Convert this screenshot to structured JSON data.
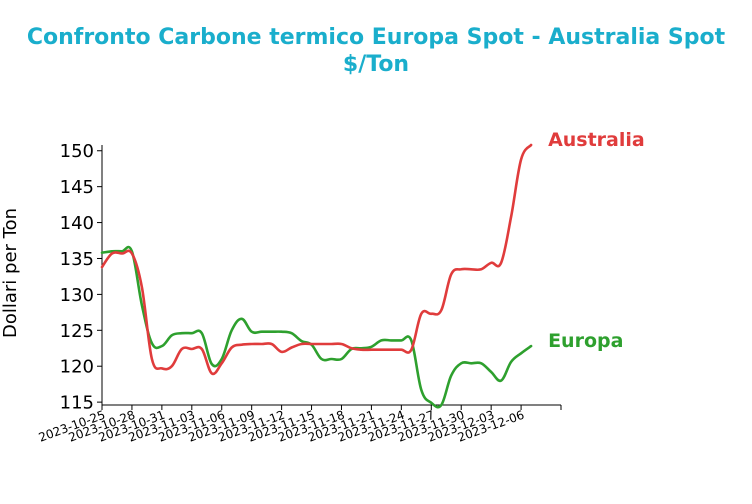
{
  "chart_data": {
    "type": "line",
    "title_line1": "Confronto Carbone termico Europa Spot - Australia Spot",
    "title_line2": "$/Ton",
    "xlabel": "",
    "ylabel": "Dollari per Ton",
    "ylim": [
      114.6,
      150.8
    ],
    "yticks": [
      115,
      120,
      125,
      130,
      135,
      140,
      145,
      150
    ],
    "xlim": [
      "2023-10-25",
      "2023-12-10"
    ],
    "xticks": [
      "2023-10-25",
      "2023-10-28",
      "2023-10-31",
      "2023-11-03",
      "2023-11-06",
      "2023-11-09",
      "2023-11-12",
      "2023-11-15",
      "2023-11-18",
      "2023-11-21",
      "2023-11-24",
      "2023-11-27",
      "2023-11-30",
      "2023-12-03",
      "2023-12-06"
    ],
    "grid": false,
    "legend": "none; series names printed at line ends",
    "series": [
      {
        "name": "Australia",
        "color": "#e03c3c",
        "x": [
          "2023-10-25",
          "2023-10-26",
          "2023-10-27",
          "2023-10-28",
          "2023-10-29",
          "2023-10-30",
          "2023-10-31",
          "2023-11-01",
          "2023-11-02",
          "2023-11-03",
          "2023-11-04",
          "2023-11-05",
          "2023-11-06",
          "2023-11-07",
          "2023-11-08",
          "2023-11-09",
          "2023-11-10",
          "2023-11-11",
          "2023-11-12",
          "2023-11-13",
          "2023-11-14",
          "2023-11-15",
          "2023-11-16",
          "2023-11-17",
          "2023-11-18",
          "2023-11-19",
          "2023-11-20",
          "2023-11-21",
          "2023-11-22",
          "2023-11-23",
          "2023-11-24",
          "2023-11-25",
          "2023-11-26",
          "2023-11-27",
          "2023-11-28",
          "2023-11-29",
          "2023-11-30",
          "2023-12-01",
          "2023-12-02",
          "2023-12-03",
          "2023-12-04",
          "2023-12-05",
          "2023-12-06",
          "2023-12-07"
        ],
        "values": [
          133.8,
          135.7,
          135.7,
          135.7,
          131.0,
          121.0,
          119.7,
          120.0,
          122.4,
          122.4,
          122.4,
          119.0,
          120.4,
          122.6,
          123.0,
          123.1,
          123.1,
          123.1,
          122.0,
          122.6,
          123.1,
          123.1,
          123.1,
          123.1,
          123.1,
          122.5,
          122.3,
          122.3,
          122.3,
          122.3,
          122.3,
          122.3,
          127.3,
          127.3,
          127.8,
          132.8,
          133.5,
          133.5,
          133.5,
          134.4,
          134.4,
          140.8,
          148.8,
          150.8
        ]
      },
      {
        "name": "Europa",
        "color": "#2ea02e",
        "x": [
          "2023-10-25",
          "2023-10-26",
          "2023-10-27",
          "2023-10-28",
          "2023-10-29",
          "2023-10-30",
          "2023-10-31",
          "2023-11-01",
          "2023-11-02",
          "2023-11-03",
          "2023-11-04",
          "2023-11-05",
          "2023-11-06",
          "2023-11-07",
          "2023-11-08",
          "2023-11-09",
          "2023-11-10",
          "2023-11-11",
          "2023-11-12",
          "2023-11-13",
          "2023-11-14",
          "2023-11-15",
          "2023-11-16",
          "2023-11-17",
          "2023-11-18",
          "2023-11-19",
          "2023-11-20",
          "2023-11-21",
          "2023-11-22",
          "2023-11-23",
          "2023-11-24",
          "2023-11-25",
          "2023-11-26",
          "2023-11-27",
          "2023-11-28",
          "2023-11-29",
          "2023-11-30",
          "2023-12-01",
          "2023-12-02",
          "2023-12-03",
          "2023-12-04",
          "2023-12-05",
          "2023-12-06",
          "2023-12-07"
        ],
        "values": [
          135.8,
          136.0,
          136.0,
          136.0,
          128.5,
          123.2,
          122.8,
          124.3,
          124.6,
          124.6,
          124.6,
          120.3,
          121.0,
          125.0,
          126.6,
          124.8,
          124.8,
          124.8,
          124.8,
          124.6,
          123.5,
          123.0,
          121.0,
          121.0,
          121.0,
          122.4,
          122.5,
          122.7,
          123.6,
          123.6,
          123.6,
          123.6,
          116.7,
          114.9,
          114.6,
          118.7,
          120.4,
          120.4,
          120.4,
          119.2,
          118.0,
          120.6,
          121.8,
          122.8
        ]
      }
    ]
  }
}
